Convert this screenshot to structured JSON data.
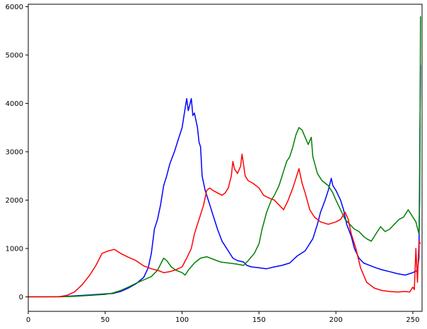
{
  "chart_data": {
    "type": "line",
    "title": "",
    "xlabel": "",
    "ylabel": "",
    "xlim": [
      0,
      256
    ],
    "ylim": [
      -300,
      6050
    ],
    "grid": false,
    "x_ticks": [
      0,
      50,
      100,
      150,
      200,
      250
    ],
    "y_ticks": [
      0,
      1000,
      2000,
      3000,
      4000,
      5000,
      6000
    ],
    "x_tick_labels": [
      "0",
      "50",
      "100",
      "150",
      "200",
      "250"
    ],
    "y_tick_labels": [
      "0",
      "1000",
      "2000",
      "3000",
      "4000",
      "5000",
      "6000"
    ],
    "series": [
      {
        "color": "#0000ff",
        "points": [
          [
            0,
            0
          ],
          [
            10,
            0
          ],
          [
            20,
            5
          ],
          [
            30,
            20
          ],
          [
            40,
            40
          ],
          [
            45,
            50
          ],
          [
            50,
            60
          ],
          [
            55,
            70
          ],
          [
            60,
            110
          ],
          [
            65,
            180
          ],
          [
            70,
            270
          ],
          [
            75,
            400
          ],
          [
            78,
            600
          ],
          [
            80,
            900
          ],
          [
            82,
            1400
          ],
          [
            84,
            1600
          ],
          [
            86,
            1900
          ],
          [
            88,
            2300
          ],
          [
            90,
            2500
          ],
          [
            92,
            2750
          ],
          [
            95,
            3000
          ],
          [
            98,
            3300
          ],
          [
            100,
            3500
          ],
          [
            102,
            3900
          ],
          [
            103,
            4100
          ],
          [
            104,
            3850
          ],
          [
            106,
            4100
          ],
          [
            107,
            3750
          ],
          [
            108,
            3800
          ],
          [
            110,
            3500
          ],
          [
            111,
            3200
          ],
          [
            112,
            3100
          ],
          [
            113,
            2500
          ],
          [
            115,
            2200
          ],
          [
            117,
            2000
          ],
          [
            120,
            1700
          ],
          [
            123,
            1400
          ],
          [
            126,
            1150
          ],
          [
            130,
            950
          ],
          [
            133,
            800
          ],
          [
            136,
            750
          ],
          [
            140,
            720
          ],
          [
            142,
            650
          ],
          [
            145,
            620
          ],
          [
            150,
            600
          ],
          [
            155,
            580
          ],
          [
            160,
            620
          ],
          [
            165,
            650
          ],
          [
            170,
            700
          ],
          [
            175,
            850
          ],
          [
            180,
            950
          ],
          [
            185,
            1200
          ],
          [
            188,
            1500
          ],
          [
            190,
            1750
          ],
          [
            193,
            2000
          ],
          [
            195,
            2200
          ],
          [
            197,
            2450
          ],
          [
            198,
            2300
          ],
          [
            200,
            2200
          ],
          [
            203,
            2000
          ],
          [
            205,
            1800
          ],
          [
            207,
            1500
          ],
          [
            210,
            1250
          ],
          [
            212,
            1000
          ],
          [
            215,
            800
          ],
          [
            218,
            700
          ],
          [
            222,
            650
          ],
          [
            226,
            600
          ],
          [
            230,
            560
          ],
          [
            235,
            520
          ],
          [
            240,
            480
          ],
          [
            245,
            450
          ],
          [
            250,
            500
          ],
          [
            253,
            550
          ],
          [
            254,
            800
          ],
          [
            255,
            4800
          ]
        ]
      },
      {
        "color": "#008000",
        "points": [
          [
            0,
            0
          ],
          [
            20,
            0
          ],
          [
            30,
            10
          ],
          [
            40,
            30
          ],
          [
            50,
            50
          ],
          [
            55,
            80
          ],
          [
            60,
            130
          ],
          [
            65,
            200
          ],
          [
            70,
            280
          ],
          [
            75,
            350
          ],
          [
            80,
            420
          ],
          [
            84,
            550
          ],
          [
            88,
            800
          ],
          [
            90,
            750
          ],
          [
            93,
            620
          ],
          [
            96,
            550
          ],
          [
            100,
            500
          ],
          [
            102,
            450
          ],
          [
            104,
            550
          ],
          [
            108,
            700
          ],
          [
            112,
            800
          ],
          [
            116,
            830
          ],
          [
            120,
            780
          ],
          [
            125,
            720
          ],
          [
            130,
            700
          ],
          [
            135,
            680
          ],
          [
            140,
            650
          ],
          [
            143,
            750
          ],
          [
            147,
            900
          ],
          [
            150,
            1100
          ],
          [
            152,
            1400
          ],
          [
            155,
            1750
          ],
          [
            158,
            2000
          ],
          [
            160,
            2100
          ],
          [
            163,
            2300
          ],
          [
            166,
            2600
          ],
          [
            168,
            2800
          ],
          [
            170,
            2900
          ],
          [
            172,
            3100
          ],
          [
            174,
            3350
          ],
          [
            176,
            3500
          ],
          [
            178,
            3450
          ],
          [
            180,
            3300
          ],
          [
            182,
            3150
          ],
          [
            184,
            3300
          ],
          [
            185,
            2900
          ],
          [
            188,
            2550
          ],
          [
            191,
            2400
          ],
          [
            195,
            2300
          ],
          [
            198,
            2150
          ],
          [
            200,
            2000
          ],
          [
            203,
            1800
          ],
          [
            206,
            1600
          ],
          [
            209,
            1500
          ],
          [
            212,
            1400
          ],
          [
            215,
            1350
          ],
          [
            218,
            1250
          ],
          [
            220,
            1200
          ],
          [
            223,
            1150
          ],
          [
            226,
            1300
          ],
          [
            229,
            1450
          ],
          [
            232,
            1350
          ],
          [
            235,
            1400
          ],
          [
            238,
            1500
          ],
          [
            241,
            1600
          ],
          [
            244,
            1650
          ],
          [
            246,
            1750
          ],
          [
            247,
            1800
          ],
          [
            249,
            1700
          ],
          [
            251,
            1600
          ],
          [
            252,
            1550
          ],
          [
            254,
            1300
          ],
          [
            254.5,
            2000
          ],
          [
            255,
            5800
          ]
        ]
      },
      {
        "color": "#ff0000",
        "points": [
          [
            0,
            0
          ],
          [
            20,
            0
          ],
          [
            25,
            30
          ],
          [
            30,
            100
          ],
          [
            35,
            250
          ],
          [
            40,
            450
          ],
          [
            44,
            650
          ],
          [
            48,
            900
          ],
          [
            52,
            950
          ],
          [
            56,
            980
          ],
          [
            60,
            900
          ],
          [
            65,
            820
          ],
          [
            70,
            750
          ],
          [
            75,
            640
          ],
          [
            80,
            580
          ],
          [
            85,
            540
          ],
          [
            88,
            500
          ],
          [
            92,
            520
          ],
          [
            96,
            560
          ],
          [
            100,
            620
          ],
          [
            103,
            800
          ],
          [
            106,
            1000
          ],
          [
            108,
            1300
          ],
          [
            110,
            1500
          ],
          [
            112,
            1700
          ],
          [
            114,
            1900
          ],
          [
            116,
            2200
          ],
          [
            118,
            2250
          ],
          [
            120,
            2200
          ],
          [
            123,
            2150
          ],
          [
            126,
            2100
          ],
          [
            128,
            2150
          ],
          [
            130,
            2250
          ],
          [
            132,
            2500
          ],
          [
            133,
            2800
          ],
          [
            134,
            2650
          ],
          [
            136,
            2550
          ],
          [
            138,
            2700
          ],
          [
            139,
            2950
          ],
          [
            141,
            2500
          ],
          [
            143,
            2400
          ],
          [
            146,
            2350
          ],
          [
            150,
            2250
          ],
          [
            153,
            2100
          ],
          [
            156,
            2050
          ],
          [
            160,
            2000
          ],
          [
            163,
            1900
          ],
          [
            166,
            1800
          ],
          [
            169,
            2000
          ],
          [
            172,
            2250
          ],
          [
            174,
            2450
          ],
          [
            176,
            2650
          ],
          [
            178,
            2350
          ],
          [
            180,
            2150
          ],
          [
            183,
            1800
          ],
          [
            186,
            1650
          ],
          [
            190,
            1550
          ],
          [
            195,
            1500
          ],
          [
            200,
            1550
          ],
          [
            203,
            1600
          ],
          [
            206,
            1750
          ],
          [
            208,
            1600
          ],
          [
            210,
            1300
          ],
          [
            213,
            1000
          ],
          [
            216,
            600
          ],
          [
            220,
            300
          ],
          [
            225,
            180
          ],
          [
            230,
            130
          ],
          [
            235,
            110
          ],
          [
            240,
            100
          ],
          [
            245,
            110
          ],
          [
            248,
            100
          ],
          [
            250,
            200
          ],
          [
            251,
            150
          ],
          [
            252,
            1000
          ],
          [
            253,
            300
          ],
          [
            254,
            1150
          ],
          [
            255,
            1100
          ]
        ]
      }
    ]
  }
}
